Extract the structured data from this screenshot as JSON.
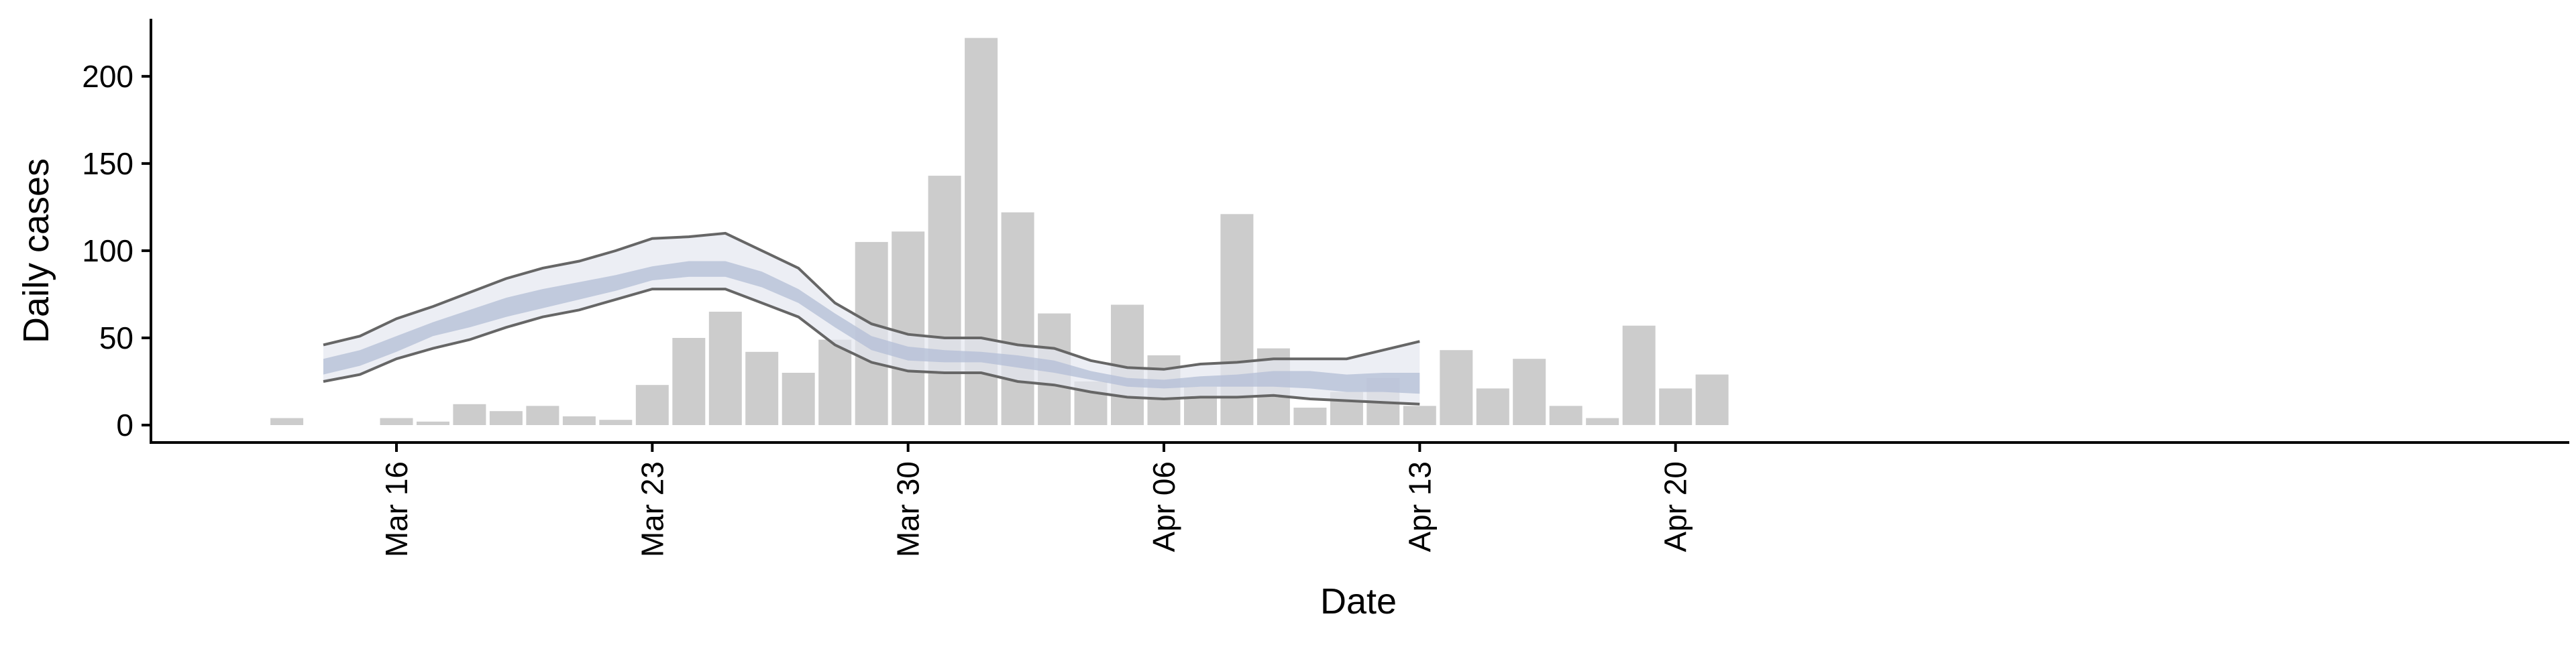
{
  "chart_data": {
    "type": "bar",
    "title": "",
    "xlabel": "Date",
    "ylabel": "Daily cases",
    "ylim": [
      -10,
      233
    ],
    "y_ticks": [
      0,
      50,
      100,
      150,
      200
    ],
    "x_ticks": [
      "Mar 16",
      "Mar 23",
      "Mar 30",
      "Apr 06",
      "Apr 13",
      "Apr 20"
    ],
    "grid": false,
    "legend": "none",
    "colors": {
      "bars": "#cccccc",
      "outer_band": "#e4e7f0",
      "inner_band": "#b3bdd6",
      "band_edge": "#666666",
      "axis": "#000000"
    },
    "bars": {
      "dates": [
        "Mar 13",
        "Mar 14",
        "Mar 15",
        "Mar 16",
        "Mar 17",
        "Mar 18",
        "Mar 19",
        "Mar 20",
        "Mar 21",
        "Mar 22",
        "Mar 23",
        "Mar 24",
        "Mar 25",
        "Mar 26",
        "Mar 27",
        "Mar 28",
        "Mar 29",
        "Mar 30",
        "Mar 31",
        "Apr 01",
        "Apr 02",
        "Apr 03",
        "Apr 04",
        "Apr 05",
        "Apr 06",
        "Apr 07",
        "Apr 08",
        "Apr 09",
        "Apr 10",
        "Apr 11",
        "Apr 12",
        "Apr 13",
        "Apr 14",
        "Apr 15",
        "Apr 16",
        "Apr 17",
        "Apr 18",
        "Apr 19",
        "Apr 20",
        "Apr 21",
        "Apr 22"
      ],
      "values": [
        4,
        0,
        0,
        4,
        2,
        12,
        8,
        11,
        5,
        3,
        23,
        50,
        65,
        42,
        30,
        49,
        105,
        111,
        143,
        222,
        122,
        64,
        25,
        69,
        40,
        22,
        121,
        44,
        10,
        19,
        27,
        11,
        43,
        21,
        38,
        11,
        4,
        57,
        21,
        29,
        0
      ]
    },
    "estimate": {
      "dates": [
        "Mar 14",
        "Mar 15",
        "Mar 16",
        "Mar 17",
        "Mar 18",
        "Mar 19",
        "Mar 20",
        "Mar 21",
        "Mar 22",
        "Mar 23",
        "Mar 24",
        "Mar 25",
        "Mar 26",
        "Mar 27",
        "Mar 28",
        "Mar 29",
        "Mar 30",
        "Mar 31",
        "Apr 01",
        "Apr 02",
        "Apr 03",
        "Apr 04",
        "Apr 05",
        "Apr 06",
        "Apr 07",
        "Apr 08",
        "Apr 09",
        "Apr 10",
        "Apr 11",
        "Apr 12",
        "Apr 13"
      ],
      "outer_upper": [
        46,
        51,
        61,
        68,
        76,
        84,
        90,
        94,
        100,
        107,
        108,
        110,
        100,
        90,
        70,
        58,
        52,
        50,
        50,
        46,
        44,
        37,
        33,
        32,
        35,
        36,
        38,
        38,
        38,
        43,
        48
      ],
      "inner_upper": [
        38,
        43,
        51,
        59,
        66,
        73,
        78,
        82,
        86,
        91,
        94,
        94,
        88,
        78,
        64,
        51,
        45,
        43,
        42,
        40,
        37,
        31,
        27,
        26,
        28,
        29,
        31,
        31,
        29,
        30,
        30
      ],
      "inner_lower": [
        29,
        34,
        42,
        51,
        56,
        62,
        67,
        72,
        77,
        83,
        85,
        85,
        79,
        70,
        56,
        43,
        37,
        36,
        36,
        33,
        30,
        26,
        22,
        21,
        22,
        22,
        22,
        21,
        19,
        19,
        18
      ],
      "outer_lower": [
        25,
        29,
        38,
        44,
        49,
        56,
        62,
        66,
        72,
        78,
        78,
        78,
        70,
        62,
        46,
        36,
        31,
        30,
        30,
        25,
        23,
        19,
        16,
        15,
        16,
        16,
        17,
        15,
        14,
        13,
        12
      ]
    }
  }
}
